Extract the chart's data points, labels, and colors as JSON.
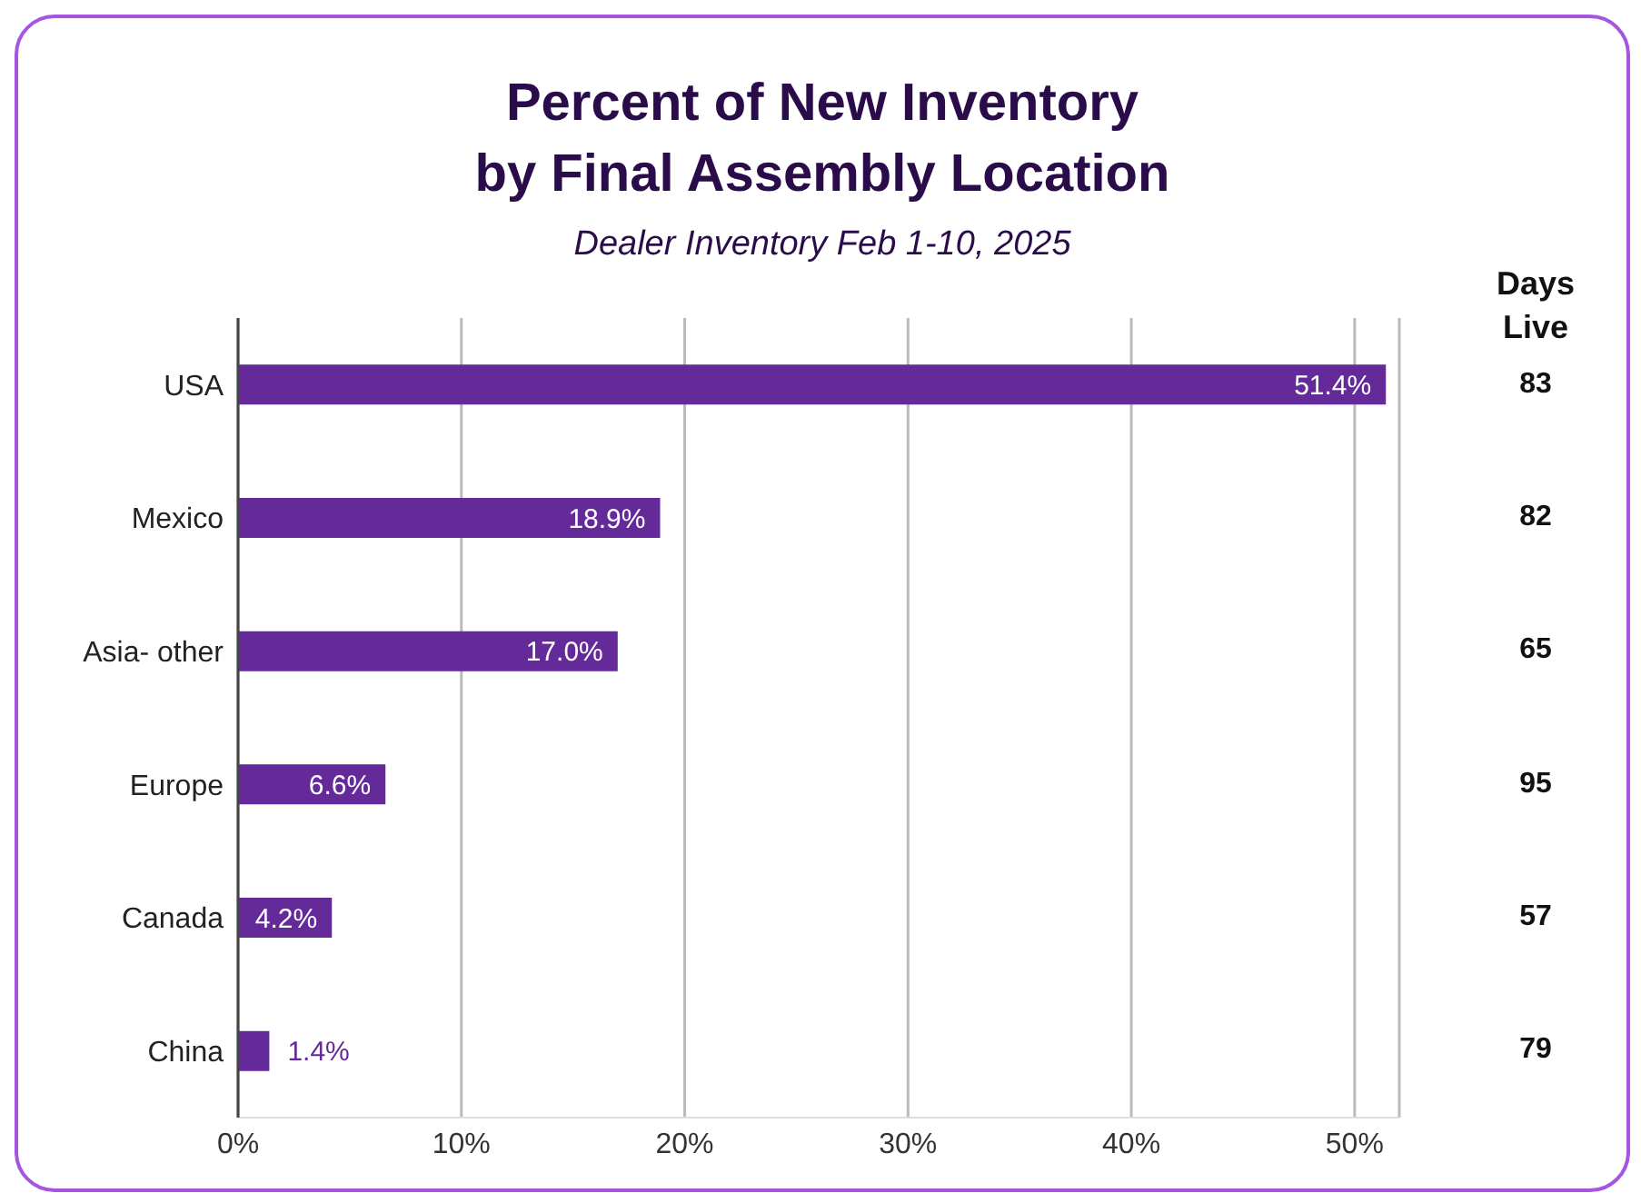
{
  "chart_data": {
    "type": "bar",
    "orientation": "horizontal",
    "title": "Percent of New Inventory\nby Final Assembly Location",
    "subtitle": "Dealer Inventory Feb 1-10, 2025",
    "categories": [
      "USA",
      "Mexico",
      "Asia- other",
      "Europe",
      "Canada",
      "China"
    ],
    "values": [
      51.4,
      18.9,
      17.0,
      6.6,
      4.2,
      1.4
    ],
    "value_labels": [
      "51.4%",
      "18.9%",
      "17.0%",
      "6.6%",
      "4.2%",
      "1.4%"
    ],
    "color": "#652a9a",
    "xlim": [
      0,
      52
    ],
    "xticks": [
      {
        "value": 0,
        "label": "0%"
      },
      {
        "value": 10,
        "label": "10%"
      },
      {
        "value": 20,
        "label": "20%"
      },
      {
        "value": 30,
        "label": "30%"
      },
      {
        "value": 40,
        "label": "40%"
      },
      {
        "value": 50,
        "label": "50%"
      }
    ],
    "grid": "x",
    "legend": false,
    "annotations": [
      "Days Live",
      "83",
      "82",
      "65",
      "95",
      "57",
      "79"
    ]
  }
}
